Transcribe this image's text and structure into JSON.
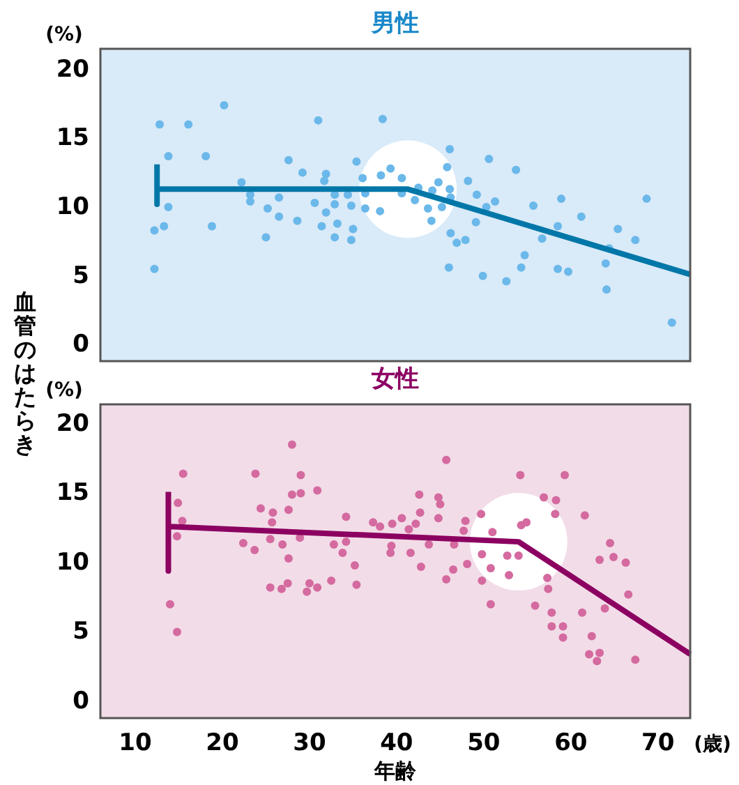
{
  "chart_data": [
    {
      "type": "scatter",
      "title": "男性",
      "ylabel": "血管のはたらき",
      "annotations": [
        "(%)"
      ],
      "xlim": [
        6,
        73.7
      ],
      "ylim": [
        -1.3,
        21.4
      ],
      "yticks": [
        0,
        5,
        10,
        15,
        20
      ],
      "tick_labels": "y",
      "marker": "circle",
      "grid": false,
      "series": [
        {
          "color": "#6bb8ea",
          "x": [
            12.8,
            16.1,
            20.2,
            13.8,
            18.1,
            13.8,
            12.2,
            13.3,
            18.8,
            12.2,
            22.2,
            23.2,
            23.2,
            25.2,
            25.0,
            26.5,
            26.5,
            27.6,
            28.6,
            29.2,
            30.6,
            31.0,
            31.9,
            31.7,
            32.9,
            32.9,
            31.9,
            31.4,
            33.2,
            32.9,
            34.4,
            34.8,
            35.4,
            36.1,
            36.4,
            36.4,
            35.0,
            34.8,
            38.1,
            38.2,
            38.4,
            39.3,
            40.6,
            40.6,
            42.1,
            42.5,
            43.6,
            44.0,
            44.1,
            44.8,
            45.2,
            46.1,
            45.8,
            46.1,
            46.2,
            46.2,
            46.9,
            46.0,
            47.9,
            48.2,
            49.1,
            49.2,
            50.3,
            50.6,
            51.3,
            49.9,
            52.6,
            53.7,
            54.3,
            54.7,
            55.7,
            56.7,
            58.5,
            58.5,
            58.9,
            59.7,
            61.2,
            64.0,
            64.4,
            64.1,
            65.4,
            67.4,
            68.7,
            71.6
          ],
          "values": [
            15.9,
            15.9,
            17.3,
            13.6,
            13.6,
            9.9,
            8.2,
            8.5,
            8.5,
            5.4,
            11.7,
            10.8,
            10.3,
            9.8,
            7.7,
            10.6,
            9.2,
            13.3,
            8.9,
            12.4,
            10.2,
            16.2,
            12.3,
            11.8,
            10.8,
            10.1,
            9.5,
            8.5,
            8.7,
            7.7,
            10.8,
            10.0,
            13.2,
            12.0,
            10.9,
            9.8,
            8.3,
            7.5,
            9.6,
            12.2,
            16.3,
            12.7,
            12.0,
            10.9,
            10.4,
            11.3,
            9.8,
            8.9,
            11.1,
            11.7,
            9.9,
            14.1,
            12.8,
            11.2,
            10.6,
            8.0,
            7.3,
            5.5,
            7.5,
            11.8,
            8.8,
            10.8,
            9.9,
            13.4,
            10.3,
            4.9,
            4.5,
            12.6,
            5.5,
            6.4,
            10.0,
            7.6,
            8.5,
            5.4,
            10.5,
            5.2,
            9.2,
            5.8,
            6.9,
            3.9,
            8.3,
            7.5,
            10.5,
            1.5
          ]
        },
        {
          "type": "line",
          "marker": "none",
          "color": "#0077a8",
          "x": [
            12.5,
            12.5,
            12.5,
            41.3,
            73.7
          ],
          "values": [
            13.0,
            10.1,
            11.2,
            11.2,
            5.0
          ]
        }
      ]
    },
    {
      "type": "scatter",
      "title": "女性",
      "xlabel": "年齢",
      "annotations": [
        "(%)",
        "(歳)"
      ],
      "xlim": [
        6,
        73.7
      ],
      "xticks": [
        10,
        20,
        30,
        40,
        50,
        60,
        70
      ],
      "ylim": [
        -1.3,
        21.3
      ],
      "yticks": [
        0,
        5,
        10,
        15,
        20
      ],
      "marker": "circle",
      "grid": false,
      "series": [
        {
          "color": "#d46a9f",
          "x": [
            15.5,
            14.9,
            15.4,
            14.8,
            14.0,
            14.8,
            23.8,
            24.4,
            22.4,
            23.7,
            25.8,
            25.7,
            25.5,
            26.9,
            27.6,
            28.0,
            28.0,
            29.0,
            29.0,
            30.9,
            28.9,
            27.6,
            25.5,
            26.8,
            27.5,
            30.0,
            29.7,
            30.9,
            32.5,
            32.8,
            33.8,
            34.2,
            34.2,
            35.2,
            35.4,
            37.3,
            38.1,
            39.5,
            40.6,
            41.4,
            42.2,
            42.7,
            42.6,
            39.4,
            39.3,
            41.6,
            42.8,
            43.7,
            44.8,
            45.0,
            44.8,
            45.7,
            46.6,
            46.5,
            45.7,
            47.9,
            47.7,
            48.1,
            49.7,
            49.8,
            49.8,
            50.8,
            51.0,
            50.8,
            52.7,
            52.9,
            54.2,
            54.3,
            54.9,
            54.0,
            55.9,
            56.9,
            58.3,
            58.2,
            59.3,
            57.3,
            57.4,
            57.8,
            57.8,
            59.1,
            59.1,
            61.6,
            61.3,
            62.4,
            62.1,
            63.0,
            63.3,
            63.3,
            64.5,
            64.9,
            63.9,
            66.3,
            66.6,
            67.4
          ],
          "values": [
            16.3,
            14.2,
            12.9,
            11.8,
            6.9,
            4.9,
            16.3,
            13.8,
            11.3,
            10.8,
            13.5,
            12.8,
            11.6,
            11.2,
            13.7,
            14.8,
            18.4,
            16.2,
            14.9,
            15.1,
            11.7,
            10.2,
            8.1,
            8.0,
            8.4,
            8.4,
            7.8,
            8.1,
            8.6,
            11.2,
            10.6,
            11.4,
            13.2,
            9.7,
            8.3,
            12.8,
            12.5,
            12.7,
            13.1,
            12.3,
            12.7,
            13.5,
            14.8,
            11.1,
            10.6,
            10.6,
            9.6,
            11.2,
            14.6,
            14.1,
            13.1,
            17.3,
            11.2,
            9.4,
            8.7,
            12.9,
            12.2,
            9.8,
            13.4,
            10.5,
            8.6,
            9.5,
            12.1,
            6.9,
            10.4,
            9.0,
            16.2,
            12.6,
            12.8,
            10.4,
            6.8,
            14.6,
            14.4,
            13.4,
            16.2,
            8.8,
            8.0,
            6.3,
            5.3,
            5.3,
            4.5,
            13.3,
            6.3,
            4.6,
            3.3,
            2.8,
            3.4,
            10.1,
            11.3,
            10.3,
            6.6,
            9.9,
            7.6,
            2.9
          ]
        },
        {
          "type": "line",
          "marker": "none",
          "color": "#8b0060",
          "x": [
            13.8,
            13.8,
            13.8,
            54.0,
            73.7
          ],
          "values": [
            15.0,
            9.3,
            12.5,
            11.4,
            3.3
          ]
        }
      ]
    }
  ]
}
